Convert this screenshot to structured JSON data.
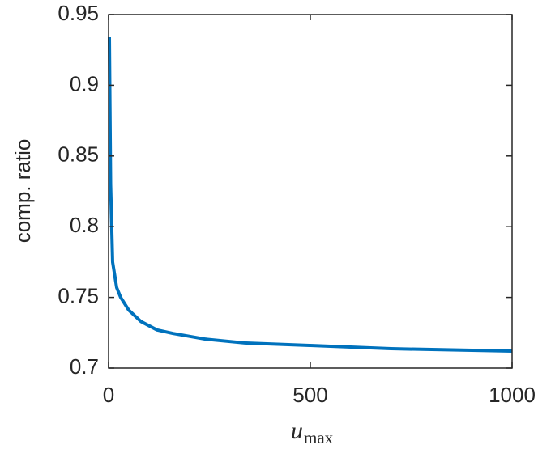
{
  "chart_data": {
    "type": "line",
    "ylabel": "comp. ratio",
    "xlabel": "u",
    "xlabel_subscript": "max",
    "x": [
      2,
      5,
      10,
      20,
      30,
      50,
      80,
      120,
      160,
      240,
      340,
      500,
      700,
      1000
    ],
    "series": [
      {
        "color": "#0072bd",
        "values": [
          0.934,
          0.83,
          0.775,
          0.757,
          0.75,
          0.741,
          0.733,
          0.727,
          0.7245,
          0.7205,
          0.7177,
          0.716,
          0.7137,
          0.712
        ]
      }
    ],
    "xlim": [
      0,
      1000
    ],
    "xticks": [
      0,
      500,
      1000
    ],
    "ylim": [
      0.7,
      0.95
    ],
    "yticks": [
      0.7,
      0.75,
      0.8,
      0.85,
      0.9,
      0.95
    ]
  }
}
